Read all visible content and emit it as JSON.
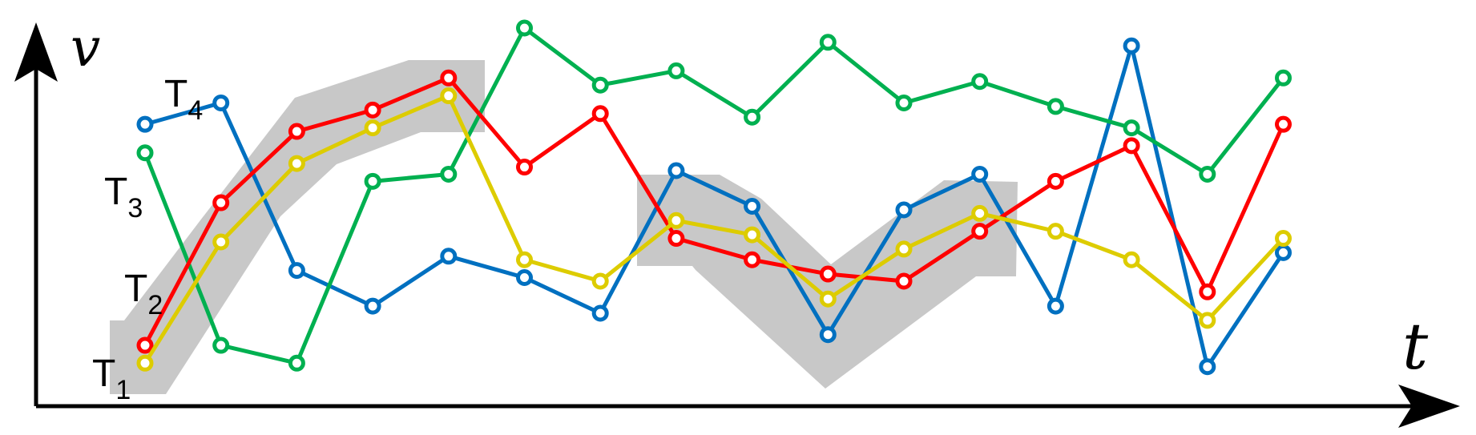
{
  "chart_data": {
    "type": "line",
    "xlabel": "t",
    "ylabel": "v",
    "grid": false,
    "legend": "none",
    "x": [
      1,
      2,
      3,
      4,
      5,
      6,
      7,
      8,
      9,
      10,
      11,
      12,
      13,
      14,
      15,
      16
    ],
    "ylim": [
      0,
      10
    ],
    "series": [
      {
        "name": "T1",
        "color": "#ffffff",
        "values": [
          0.4,
          null,
          null,
          null,
          null,
          null,
          null,
          null,
          null,
          null,
          null,
          null,
          null,
          null,
          null,
          null
        ]
      },
      {
        "name": "T4",
        "color": "#0070C0",
        "values": [
          7.3,
          7.9,
          3.2,
          2.2,
          3.6,
          3.0,
          2.0,
          6.0,
          5.0,
          1.4,
          4.9,
          5.9,
          2.2,
          9.5,
          0.5,
          3.7
        ]
      },
      {
        "name": "T3",
        "color": "#00B050",
        "values": [
          6.5,
          1.1,
          0.6,
          5.7,
          5.9,
          10.0,
          8.4,
          8.8,
          7.5,
          9.6,
          7.9,
          8.5,
          7.8,
          7.2,
          5.9,
          8.6
        ]
      },
      {
        "name": "T2",
        "color": "#FF0000",
        "values": [
          1.1,
          5.1,
          7.1,
          7.7,
          8.6,
          6.1,
          7.6,
          4.1,
          3.5,
          3.1,
          2.9,
          4.3,
          5.7,
          6.7,
          2.6,
          7.3
        ]
      },
      {
        "name": "T1",
        "color": "#DDCC00",
        "values": [
          0.6,
          4.0,
          6.2,
          7.2,
          8.1,
          3.5,
          2.9,
          4.6,
          4.2,
          2.4,
          3.8,
          4.8,
          4.3,
          3.5,
          1.8,
          4.1
        ]
      }
    ],
    "labels": [
      {
        "main": "T",
        "sub": "4"
      },
      {
        "main": "T",
        "sub": "3"
      },
      {
        "main": "T",
        "sub": "2"
      },
      {
        "main": "T",
        "sub": "1"
      }
    ],
    "highlight_color": "#c8c8c8"
  }
}
